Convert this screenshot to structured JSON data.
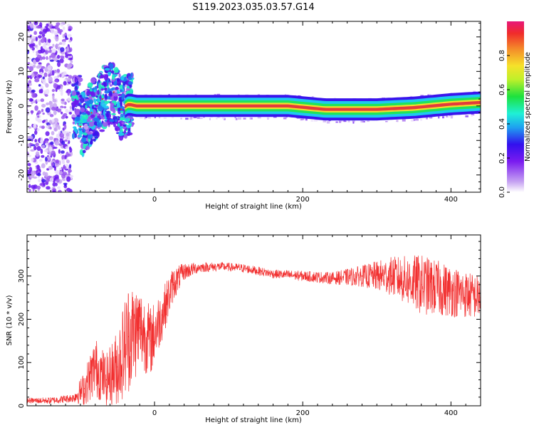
{
  "title": "S119.2023.035.03.57.G14",
  "colors": {
    "snr_line": "#f23030",
    "axis": "#000000",
    "ridge": "#e33b3b"
  },
  "chart_data": [
    {
      "type": "heatmap",
      "xlabel": "Height of straight line (km)",
      "ylabel": "Frequency (Hz)",
      "xlim": [
        -172,
        440
      ],
      "ylim": [
        -25,
        24.5
      ],
      "x_ticks": [
        0,
        200,
        400
      ],
      "y_ticks": [
        -20,
        -10,
        0,
        10,
        20
      ],
      "grid": false,
      "colorbar": {
        "label": "Normalized spectral amplitude",
        "range": [
          0,
          1
        ],
        "ticks": [
          0.0,
          0.2,
          0.4,
          0.6,
          0.8
        ],
        "colormap": "rainbow"
      },
      "ridge_frequency": [
        {
          "x": -100,
          "y": -6
        },
        {
          "x": -85,
          "y": -2
        },
        {
          "x": -70,
          "y": 2
        },
        {
          "x": -55,
          "y": 4
        },
        {
          "x": -45,
          "y": -1
        },
        {
          "x": -35,
          "y": 0.5
        },
        {
          "x": -25,
          "y": 0
        },
        {
          "x": 0,
          "y": 0
        },
        {
          "x": 100,
          "y": 0
        },
        {
          "x": 180,
          "y": 0
        },
        {
          "x": 230,
          "y": -1
        },
        {
          "x": 300,
          "y": -1
        },
        {
          "x": 350,
          "y": -0.5
        },
        {
          "x": 400,
          "y": 0.5
        },
        {
          "x": 440,
          "y": 1
        }
      ]
    },
    {
      "type": "line",
      "xlabel": "Height of straight line (km)",
      "ylabel": "SNR (10 * v/v)",
      "xlim": [
        -172,
        440
      ],
      "ylim": [
        0,
        395
      ],
      "x_ticks": [
        0,
        200,
        400
      ],
      "y_ticks": [
        0,
        100,
        200,
        300
      ],
      "grid": false,
      "series": [
        {
          "color": "#f23030",
          "points": [
            {
              "x": -172,
              "y": 12,
              "spread": 6
            },
            {
              "x": -140,
              "y": 12,
              "spread": 8
            },
            {
              "x": -110,
              "y": 18,
              "spread": 10
            },
            {
              "x": -95,
              "y": 40,
              "spread": 40
            },
            {
              "x": -80,
              "y": 90,
              "spread": 70
            },
            {
              "x": -65,
              "y": 60,
              "spread": 60
            },
            {
              "x": -50,
              "y": 90,
              "spread": 90
            },
            {
              "x": -35,
              "y": 160,
              "spread": 130
            },
            {
              "x": -20,
              "y": 180,
              "spread": 100
            },
            {
              "x": -5,
              "y": 150,
              "spread": 80
            },
            {
              "x": 10,
              "y": 210,
              "spread": 60
            },
            {
              "x": 25,
              "y": 280,
              "spread": 40
            },
            {
              "x": 40,
              "y": 310,
              "spread": 20
            },
            {
              "x": 60,
              "y": 320,
              "spread": 12
            },
            {
              "x": 90,
              "y": 322,
              "spread": 10
            },
            {
              "x": 120,
              "y": 318,
              "spread": 10
            },
            {
              "x": 160,
              "y": 305,
              "spread": 10
            },
            {
              "x": 200,
              "y": 300,
              "spread": 12
            },
            {
              "x": 240,
              "y": 295,
              "spread": 14
            },
            {
              "x": 280,
              "y": 300,
              "spread": 25
            },
            {
              "x": 320,
              "y": 300,
              "spread": 45
            },
            {
              "x": 360,
              "y": 280,
              "spread": 70
            },
            {
              "x": 400,
              "y": 265,
              "spread": 60
            },
            {
              "x": 440,
              "y": 250,
              "spread": 50
            }
          ]
        }
      ]
    }
  ]
}
